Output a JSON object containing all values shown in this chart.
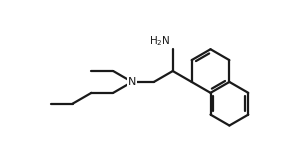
{
  "background_color": "#ffffff",
  "line_color": "#1a1a1a",
  "line_width": 1.6,
  "fig_width": 3.06,
  "fig_height": 1.5,
  "dpi": 100
}
